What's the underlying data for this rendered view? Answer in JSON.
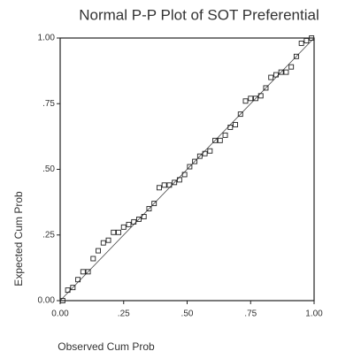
{
  "chart_data": {
    "type": "scatter",
    "title": "Normal P-P Plot of SOT Preferential",
    "xlabel": "Observed Cum Prob",
    "ylabel": "Expected Cum Prob",
    "x": [
      0.01,
      0.03,
      0.05,
      0.07,
      0.09,
      0.11,
      0.13,
      0.15,
      0.17,
      0.19,
      0.21,
      0.23,
      0.25,
      0.27,
      0.29,
      0.31,
      0.33,
      0.35,
      0.37,
      0.39,
      0.41,
      0.43,
      0.45,
      0.47,
      0.49,
      0.51,
      0.53,
      0.55,
      0.57,
      0.59,
      0.61,
      0.63,
      0.65,
      0.67,
      0.69,
      0.71,
      0.73,
      0.75,
      0.77,
      0.79,
      0.81,
      0.83,
      0.85,
      0.87,
      0.89,
      0.91,
      0.93,
      0.95,
      0.97,
      0.99
    ],
    "values": [
      0.0,
      0.04,
      0.05,
      0.08,
      0.11,
      0.11,
      0.16,
      0.19,
      0.22,
      0.23,
      0.26,
      0.26,
      0.28,
      0.29,
      0.3,
      0.31,
      0.32,
      0.35,
      0.37,
      0.43,
      0.44,
      0.44,
      0.45,
      0.46,
      0.48,
      0.51,
      0.53,
      0.55,
      0.56,
      0.57,
      0.61,
      0.61,
      0.63,
      0.66,
      0.67,
      0.71,
      0.76,
      0.77,
      0.77,
      0.78,
      0.81,
      0.85,
      0.86,
      0.87,
      0.87,
      0.89,
      0.93,
      0.98,
      0.99,
      1.0
    ],
    "color": "#222222",
    "xlim": [
      0,
      1
    ],
    "ylim": [
      0,
      1
    ],
    "xticks": [
      {
        "value": 0,
        "label": "0.00"
      },
      {
        "value": 0.25,
        "label": ".25"
      },
      {
        "value": 0.5,
        "label": ".50"
      },
      {
        "value": 0.75,
        "label": ".75"
      },
      {
        "value": 1,
        "label": "1.00"
      }
    ],
    "yticks": [
      {
        "value": 0,
        "label": "0.00"
      },
      {
        "value": 0.25,
        "label": ".25"
      },
      {
        "value": 0.5,
        "label": ".50"
      },
      {
        "value": 0.75,
        "label": ".75"
      },
      {
        "value": 1,
        "label": "1.00"
      }
    ],
    "reference_line": true
  }
}
